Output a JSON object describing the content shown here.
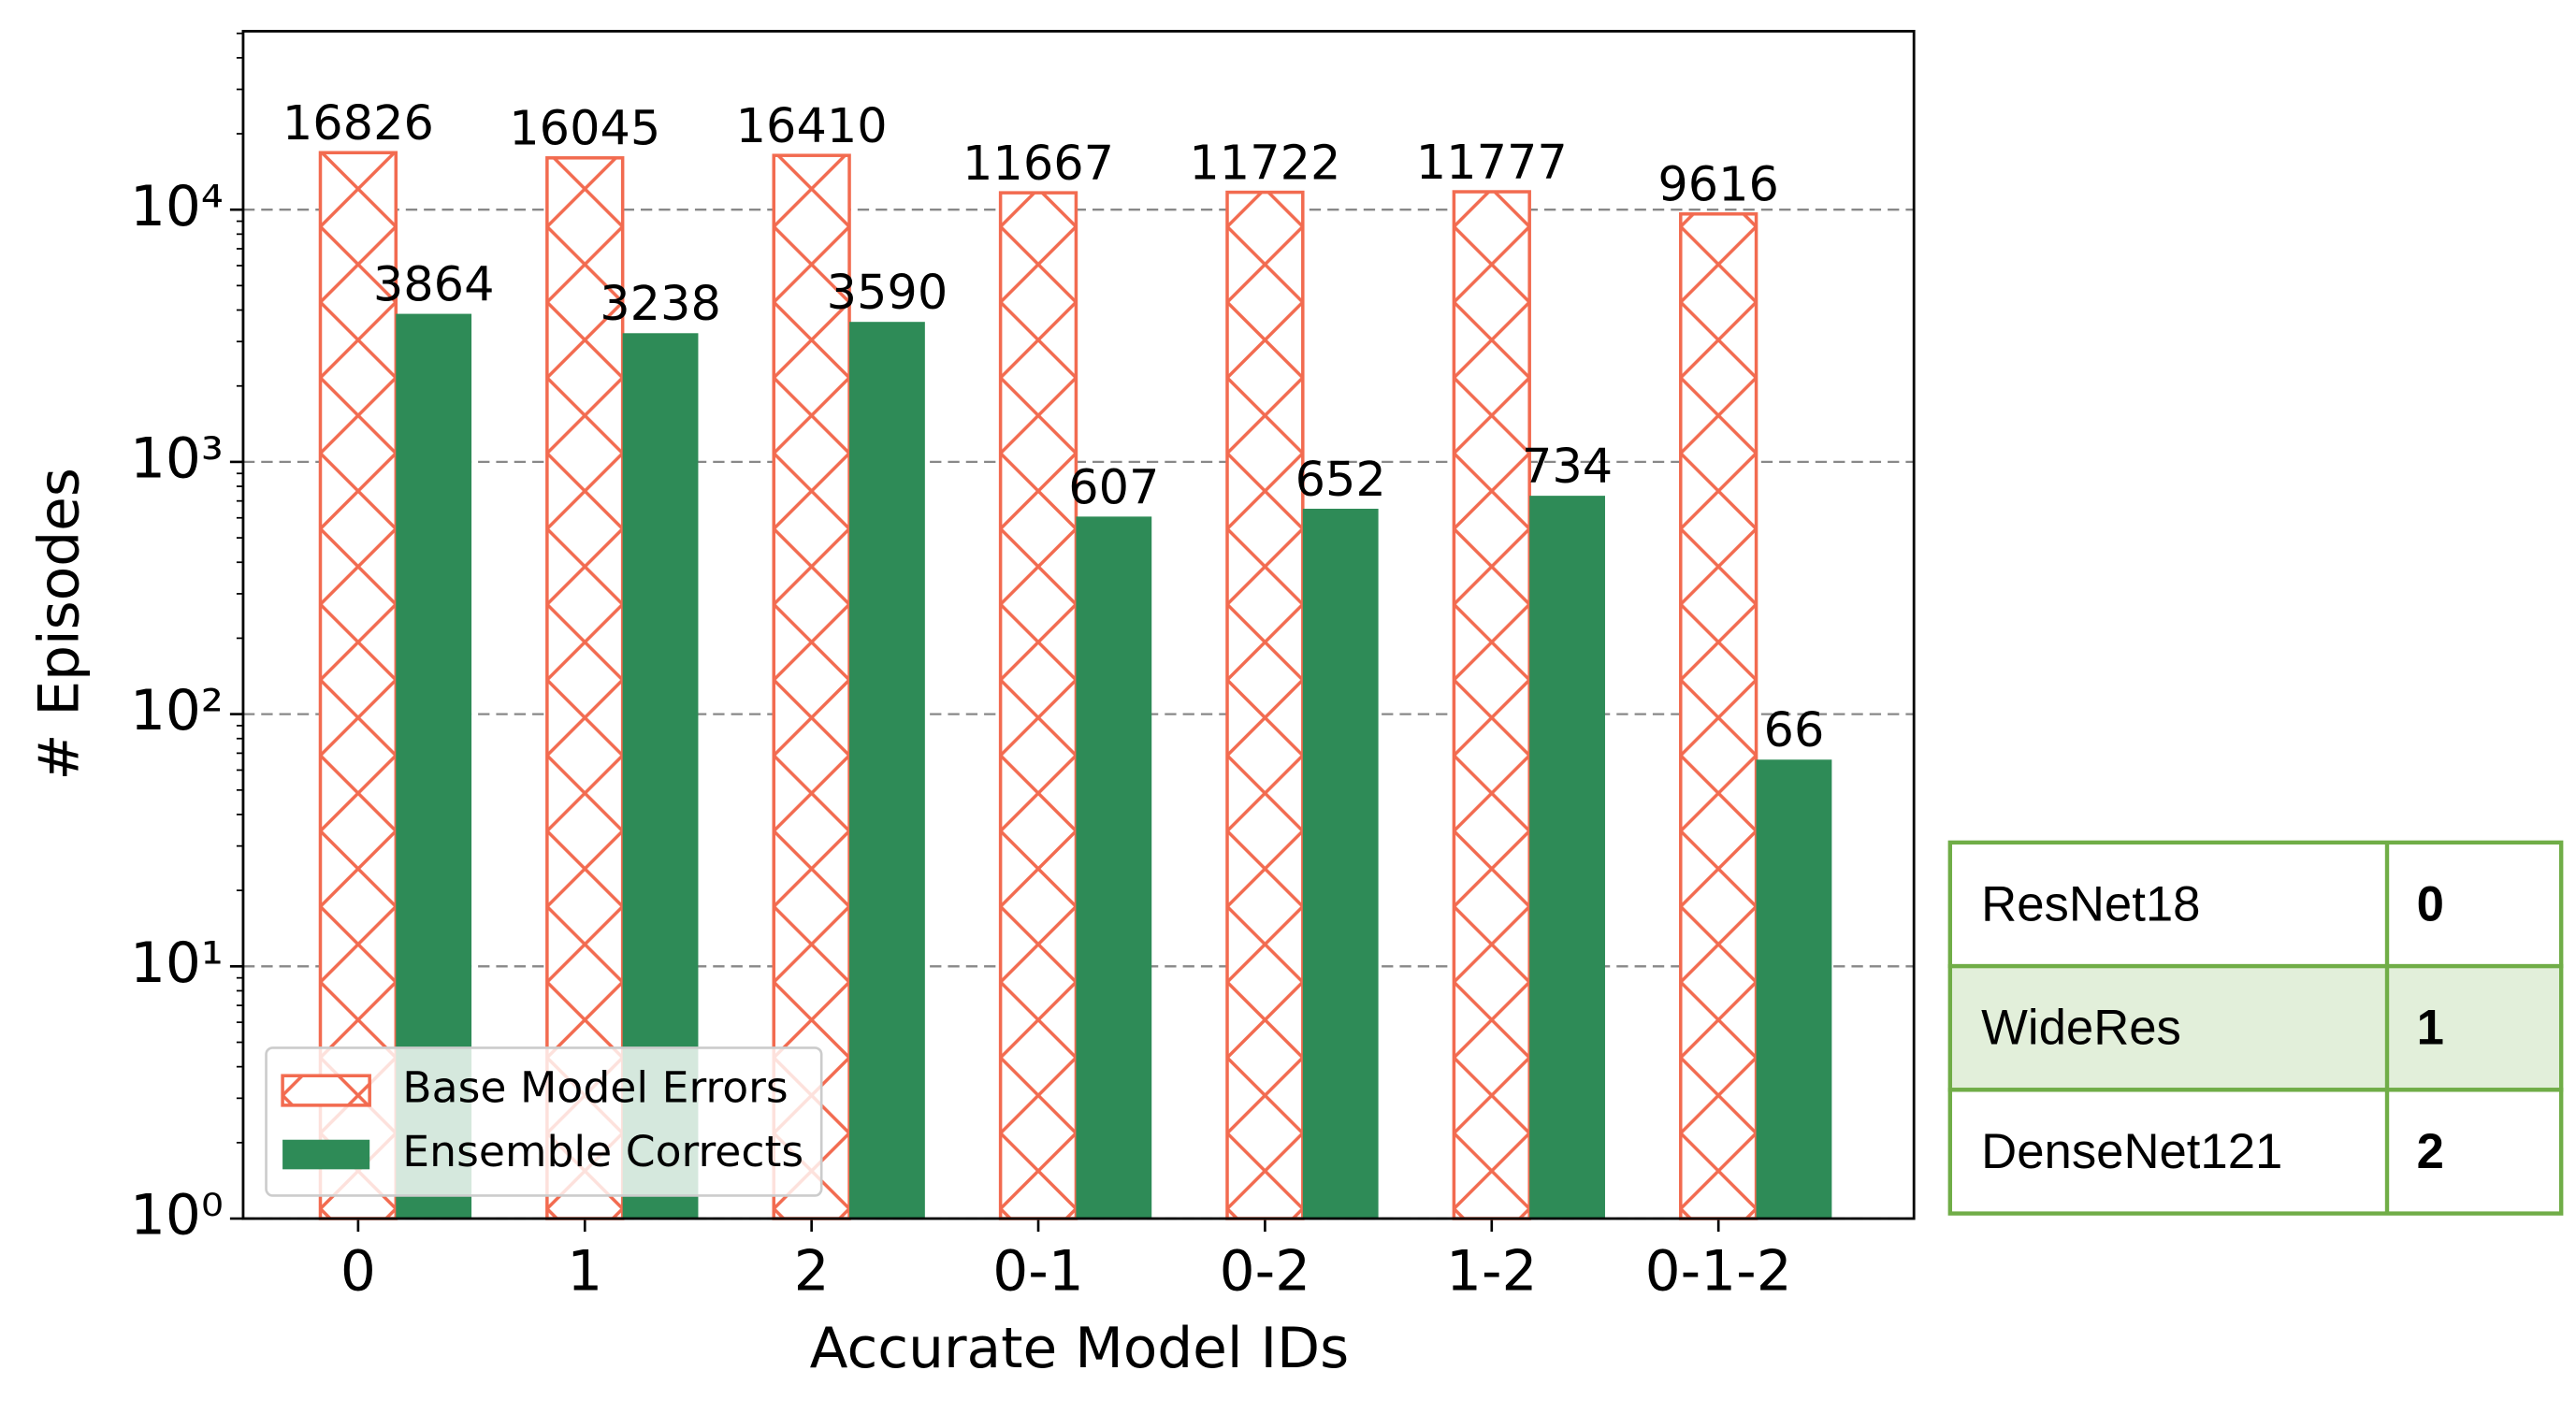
{
  "chart_data": {
    "type": "bar",
    "xlabel": "Accurate Model IDs",
    "ylabel": "# Episodes",
    "categories": [
      "0",
      "1",
      "2",
      "0-1",
      "0-2",
      "1-2",
      "0-1-2"
    ],
    "series": [
      {
        "name": "Base Model Errors",
        "color": "#f26b50",
        "hatch": "x",
        "values": [
          16826,
          16045,
          16410,
          11667,
          11722,
          11777,
          9616
        ]
      },
      {
        "name": "Ensemble Corrects",
        "color": "#2e8b57",
        "values": [
          3864,
          3238,
          3590,
          607,
          652,
          734,
          66
        ]
      }
    ],
    "log_scale": true,
    "ylim": [
      1,
      51000
    ],
    "yticks": [
      {
        "value": 1,
        "label": "10⁰"
      },
      {
        "value": 10,
        "label": "10¹"
      },
      {
        "value": 100,
        "label": "10²"
      },
      {
        "value": 1000,
        "label": "10³"
      },
      {
        "value": 10000,
        "label": "10⁴"
      }
    ],
    "yminorticks": [
      2,
      3,
      4,
      5,
      6,
      7,
      8,
      9,
      20,
      30,
      40,
      50,
      60,
      70,
      80,
      90,
      200,
      300,
      400,
      500,
      600,
      700,
      800,
      900,
      2000,
      3000,
      4000,
      5000,
      6000,
      7000,
      8000,
      9000,
      20000,
      30000,
      40000,
      50000
    ],
    "grid": true,
    "legend": "lower left"
  },
  "table": {
    "rows": [
      [
        "ResNet18",
        "0"
      ],
      [
        "WideRes",
        "1"
      ],
      [
        "DenseNet121",
        "2"
      ]
    ],
    "highlight_row": 1
  }
}
